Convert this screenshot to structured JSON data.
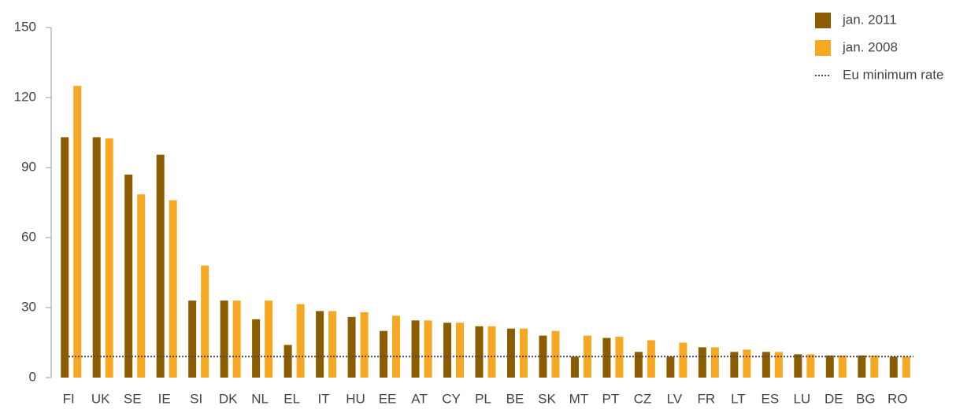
{
  "chart_data": {
    "type": "bar",
    "categories": [
      "FI",
      "UK",
      "SE",
      "IE",
      "SI",
      "DK",
      "NL",
      "EL",
      "IT",
      "HU",
      "EE",
      "AT",
      "CY",
      "PL",
      "BE",
      "SK",
      "MT",
      "PT",
      "CZ",
      "LV",
      "FR",
      "LT",
      "ES",
      "LU",
      "DE",
      "BG",
      "RO"
    ],
    "series": [
      {
        "name": "jan. 2011",
        "color": "#8c5d00",
        "values": [
          103,
          103,
          87,
          95.5,
          33,
          33,
          25,
          14,
          28.5,
          26,
          20,
          24.5,
          23.5,
          22,
          21,
          18,
          9,
          17,
          11,
          9,
          13,
          11,
          11,
          10,
          9.5,
          9.5,
          9
        ]
      },
      {
        "name": "jan. 2008",
        "color": "#f7a823",
        "values": [
          125,
          102.5,
          78.5,
          76,
          48,
          33,
          33,
          31.5,
          28.5,
          28,
          26.5,
          24.5,
          23.5,
          22,
          21,
          20,
          18,
          17.5,
          16,
          15,
          13,
          12,
          11,
          10,
          9.5,
          9.5,
          9
        ]
      }
    ],
    "reference_line": {
      "name": "Eu minimum rate",
      "value": 9,
      "color": "#4a4a4a"
    },
    "ylim": [
      0,
      150
    ],
    "yticks": [
      0,
      30,
      60,
      90,
      120,
      150
    ],
    "grid": false
  }
}
